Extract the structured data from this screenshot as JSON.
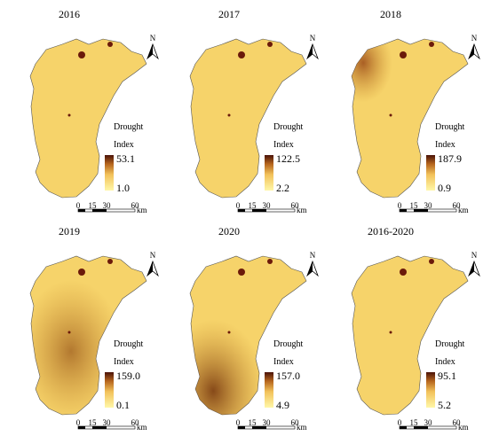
{
  "figure": {
    "legend_title": [
      "Drought",
      "Index"
    ],
    "north": "N",
    "scale_labels": [
      "0",
      "15",
      "30",
      "60"
    ],
    "scale_unit": "km"
  },
  "panels": [
    {
      "title": "2016",
      "max": "53.1",
      "min": "1.0"
    },
    {
      "title": "2017",
      "max": "122.5",
      "min": "2.2"
    },
    {
      "title": "2018",
      "max": "187.9",
      "min": "0.9"
    },
    {
      "title": "2019",
      "max": "159.0",
      "min": "0.1"
    },
    {
      "title": "2020",
      "max": "157.0",
      "min": "4.9"
    },
    {
      "title": "2016-2020",
      "max": "95.1",
      "min": "5.2"
    }
  ]
}
